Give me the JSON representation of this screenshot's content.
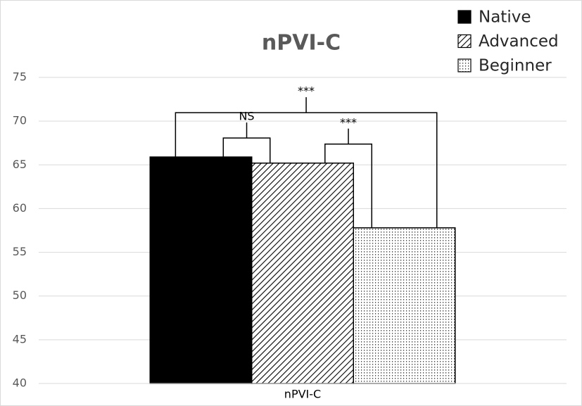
{
  "chart_data": {
    "type": "bar",
    "title": "nPVI-C",
    "categories": [
      "nPVI-C"
    ],
    "series": [
      {
        "name": "Native",
        "color": "#000000",
        "pattern": "solid",
        "values": [
          65.9
        ]
      },
      {
        "name": "Advanced",
        "color": "#000000",
        "pattern": "hatch",
        "values": [
          65.2
        ]
      },
      {
        "name": "Beginner",
        "color": "#000000",
        "pattern": "dots",
        "values": [
          57.8
        ]
      }
    ],
    "ylim": [
      40,
      75
    ],
    "yticks": [
      40,
      45,
      50,
      55,
      60,
      65,
      70,
      75
    ],
    "grid": true,
    "legend": "top-right",
    "annotations": [
      {
        "text": "NS",
        "between": [
          "Native",
          "Advanced"
        ]
      },
      {
        "text": "***",
        "between": [
          "Advanced",
          "Beginner"
        ]
      },
      {
        "text": "***",
        "between": [
          "Native",
          "Beginner"
        ]
      }
    ]
  }
}
